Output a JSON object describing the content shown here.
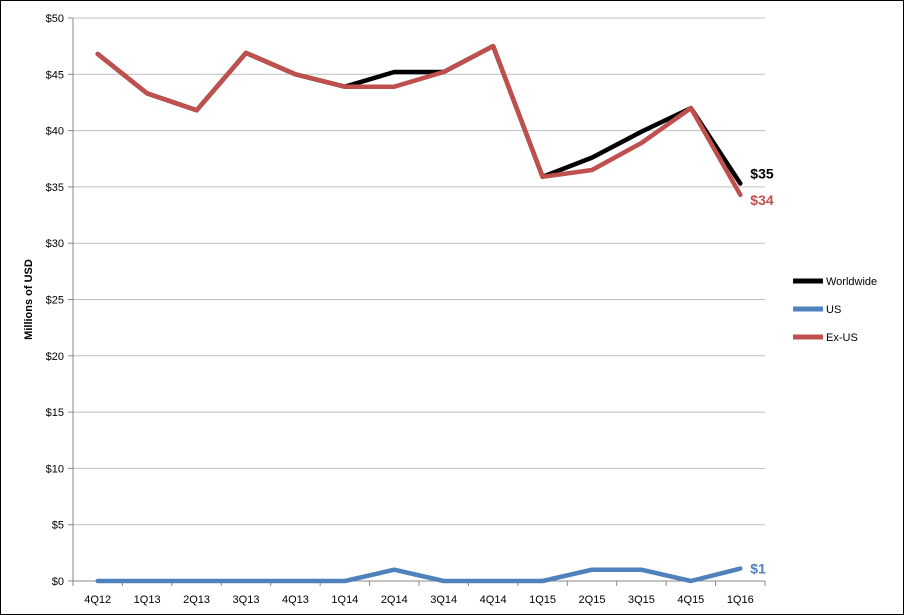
{
  "chart_data": {
    "type": "line",
    "title": "",
    "xlabel": "",
    "ylabel": "Millions of USD",
    "ylim": [
      0,
      50
    ],
    "y_tick_labels": [
      "$0",
      "$5",
      "$10",
      "$15",
      "$20",
      "$25",
      "$30",
      "$35",
      "$40",
      "$45",
      "$50"
    ],
    "categories": [
      "4Q12",
      "1Q13",
      "2Q13",
      "3Q13",
      "4Q13",
      "1Q14",
      "2Q14",
      "3Q14",
      "4Q14",
      "1Q15",
      "2Q15",
      "3Q15",
      "4Q15",
      "1Q16"
    ],
    "grid": "horizontal",
    "legend_position": "right",
    "series": [
      {
        "name": "Worldwide",
        "color": "#000000",
        "values": [
          46.8,
          43.3,
          41.8,
          46.9,
          45.0,
          43.9,
          45.2,
          45.2,
          47.5,
          35.9,
          37.6,
          39.9,
          42.0,
          35.3
        ],
        "end_label": "$35"
      },
      {
        "name": "US",
        "color": "#4f81bd",
        "values": [
          0,
          0,
          0,
          0,
          0,
          0,
          1,
          0,
          0,
          0,
          1,
          1,
          0,
          1.1
        ],
        "end_label": "$1"
      },
      {
        "name": "Ex-US",
        "color": "#c0504d",
        "values": [
          46.8,
          43.3,
          41.8,
          46.9,
          45.0,
          43.9,
          43.9,
          45.2,
          47.5,
          35.9,
          36.5,
          38.9,
          42.0,
          34.3
        ],
        "end_label": "$34"
      }
    ]
  }
}
